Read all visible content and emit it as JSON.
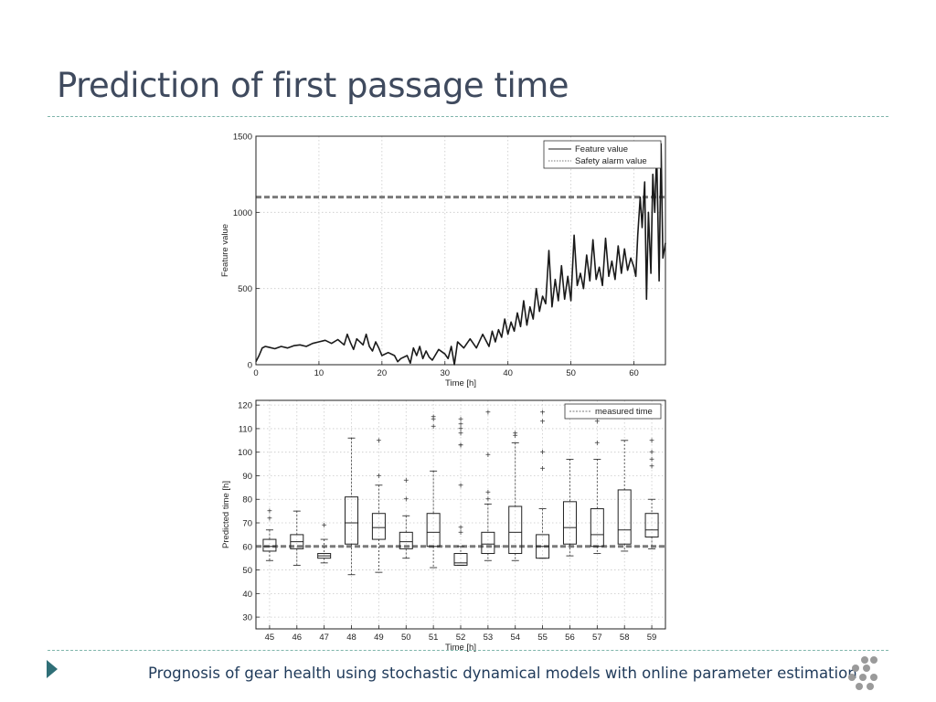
{
  "slide": {
    "title": "Prediction of first passage time",
    "footer": "Prognosis of gear health using stochastic dynamical models with online parameter estimation"
  },
  "colors": {
    "title": "#3f4a5e",
    "rule": "#7fb5ab",
    "footer_text": "#1f3a5a",
    "arrow": "#2f6f77",
    "logo": "#9a9a9a"
  },
  "icons": {
    "nav": "triangle-right-icon",
    "logo": "dot-cluster-logo"
  },
  "chart_data": [
    {
      "type": "line",
      "xlabel": "Time [h]",
      "ylabel": "Feature value",
      "xlim": [
        0,
        65
      ],
      "ylim": [
        0,
        1500
      ],
      "xticks": [
        0,
        10,
        20,
        30,
        40,
        50,
        60
      ],
      "yticks": [
        0,
        500,
        1000,
        1500
      ],
      "grid": true,
      "legend_position": "top-right",
      "legend": [
        "Feature value",
        "Safety alarm value"
      ],
      "series": [
        {
          "name": "Feature value",
          "style": "solid",
          "x": [
            0,
            0.5,
            1,
            1.5,
            2,
            3,
            4,
            5,
            6,
            7,
            8,
            9,
            10,
            11,
            12,
            13,
            14,
            14.5,
            15,
            15.5,
            16,
            17,
            17.5,
            18,
            18.5,
            19,
            19.5,
            20,
            21,
            22,
            22.5,
            23,
            24,
            24.5,
            25,
            25.5,
            26,
            26.5,
            27,
            27.5,
            28,
            29,
            30,
            30.5,
            31,
            31.5,
            32,
            33,
            34,
            35,
            36,
            37,
            37.5,
            38,
            38.5,
            39,
            39.5,
            40,
            40.5,
            41,
            41.5,
            42,
            42.5,
            43,
            43.5,
            44,
            44.5,
            45,
            45.5,
            46,
            46.5,
            47,
            47.5,
            48,
            48.5,
            49,
            49.5,
            50,
            50.5,
            51,
            51.5,
            52,
            52.5,
            53,
            53.5,
            54,
            54.5,
            55,
            55.5,
            56,
            56.5,
            57,
            57.5,
            58,
            58.5,
            59,
            59.5,
            60,
            60.3,
            60.6,
            61,
            61.3,
            61.7,
            62,
            62.3,
            62.7,
            63,
            63.3,
            63.6,
            64,
            64.3,
            64.6,
            65
          ],
          "y": [
            20,
            60,
            110,
            120,
            115,
            105,
            120,
            110,
            125,
            130,
            120,
            140,
            150,
            160,
            140,
            165,
            130,
            200,
            145,
            100,
            170,
            130,
            200,
            120,
            90,
            150,
            110,
            60,
            80,
            60,
            20,
            40,
            60,
            10,
            110,
            60,
            120,
            40,
            90,
            50,
            30,
            100,
            70,
            40,
            120,
            0,
            150,
            110,
            170,
            110,
            200,
            120,
            220,
            150,
            230,
            180,
            300,
            200,
            280,
            220,
            340,
            250,
            420,
            260,
            380,
            300,
            500,
            350,
            450,
            400,
            750,
            380,
            560,
            420,
            650,
            430,
            580,
            420,
            850,
            520,
            600,
            500,
            720,
            550,
            820,
            560,
            640,
            520,
            830,
            580,
            680,
            560,
            780,
            600,
            760,
            620,
            700,
            640,
            580,
            850,
            1100,
            900,
            1200,
            430,
            1000,
            600,
            1250,
            1000,
            1400,
            550,
            1450,
            700,
            800
          ]
        },
        {
          "name": "Safety alarm value",
          "style": "dashed",
          "y_constant": 1100
        }
      ]
    },
    {
      "type": "box",
      "xlabel": "Time [h]",
      "ylabel": "Predicted time [h]",
      "ylim": [
        25,
        122
      ],
      "yticks": [
        30,
        40,
        50,
        60,
        70,
        80,
        90,
        100,
        110,
        120
      ],
      "categories": [
        "45",
        "46",
        "47",
        "48",
        "49",
        "50",
        "51",
        "52",
        "53",
        "54",
        "55",
        "56",
        "57",
        "58",
        "59"
      ],
      "grid": true,
      "legend_position": "top-right",
      "legend": [
        "measured time"
      ],
      "reference_line": {
        "name": "measured time",
        "value": 60
      },
      "boxes": [
        {
          "category": "45",
          "whisker_low": 54,
          "q1": 58,
          "median": 60,
          "q3": 63,
          "whisker_high": 67,
          "outliers": [
            75,
            72
          ]
        },
        {
          "category": "46",
          "whisker_low": 52,
          "q1": 59,
          "median": 62,
          "q3": 65,
          "whisker_high": 75,
          "outliers": []
        },
        {
          "category": "47",
          "whisker_low": 53,
          "q1": 55,
          "median": 56,
          "q3": 57,
          "whisker_high": 63,
          "outliers": [
            69
          ]
        },
        {
          "category": "48",
          "whisker_low": 48,
          "q1": 61,
          "median": 70,
          "q3": 81,
          "whisker_high": 106,
          "outliers": []
        },
        {
          "category": "49",
          "whisker_low": 49,
          "q1": 63,
          "median": 68,
          "q3": 74,
          "whisker_high": 86,
          "outliers": [
            90,
            105
          ]
        },
        {
          "category": "50",
          "whisker_low": 55,
          "q1": 59,
          "median": 62,
          "q3": 66,
          "whisker_high": 73,
          "outliers": [
            80,
            88
          ]
        },
        {
          "category": "51",
          "whisker_low": 51,
          "q1": 60,
          "median": 66,
          "q3": 74,
          "whisker_high": 92,
          "outliers": [
            111,
            114,
            115
          ]
        },
        {
          "category": "52",
          "whisker_low": 52,
          "q1": 52,
          "median": 53,
          "q3": 57,
          "whisker_high": 60,
          "outliers": [
            66,
            68,
            86,
            103,
            103,
            108,
            110,
            112,
            114
          ]
        },
        {
          "category": "53",
          "whisker_low": 54,
          "q1": 57,
          "median": 61,
          "q3": 66,
          "whisker_high": 78,
          "outliers": [
            80,
            83,
            99,
            117
          ]
        },
        {
          "category": "54",
          "whisker_low": 54,
          "q1": 57,
          "median": 66,
          "q3": 77,
          "whisker_high": 104,
          "outliers": [
            107,
            108
          ]
        },
        {
          "category": "55",
          "whisker_low": 55,
          "q1": 55,
          "median": 60,
          "q3": 65,
          "whisker_high": 76,
          "outliers": [
            93,
            100,
            113,
            117
          ]
        },
        {
          "category": "56",
          "whisker_low": 56,
          "q1": 61,
          "median": 68,
          "q3": 79,
          "whisker_high": 97,
          "outliers": []
        },
        {
          "category": "57",
          "whisker_low": 57,
          "q1": 60,
          "median": 65,
          "q3": 76,
          "whisker_high": 97,
          "outliers": [
            104,
            113
          ]
        },
        {
          "category": "58",
          "whisker_low": 58,
          "q1": 61,
          "median": 67,
          "q3": 84,
          "whisker_high": 105,
          "outliers": []
        },
        {
          "category": "59",
          "whisker_low": 59,
          "q1": 64,
          "median": 67,
          "q3": 74,
          "whisker_high": 80,
          "outliers": [
            94,
            97,
            100,
            105
          ]
        }
      ]
    }
  ]
}
